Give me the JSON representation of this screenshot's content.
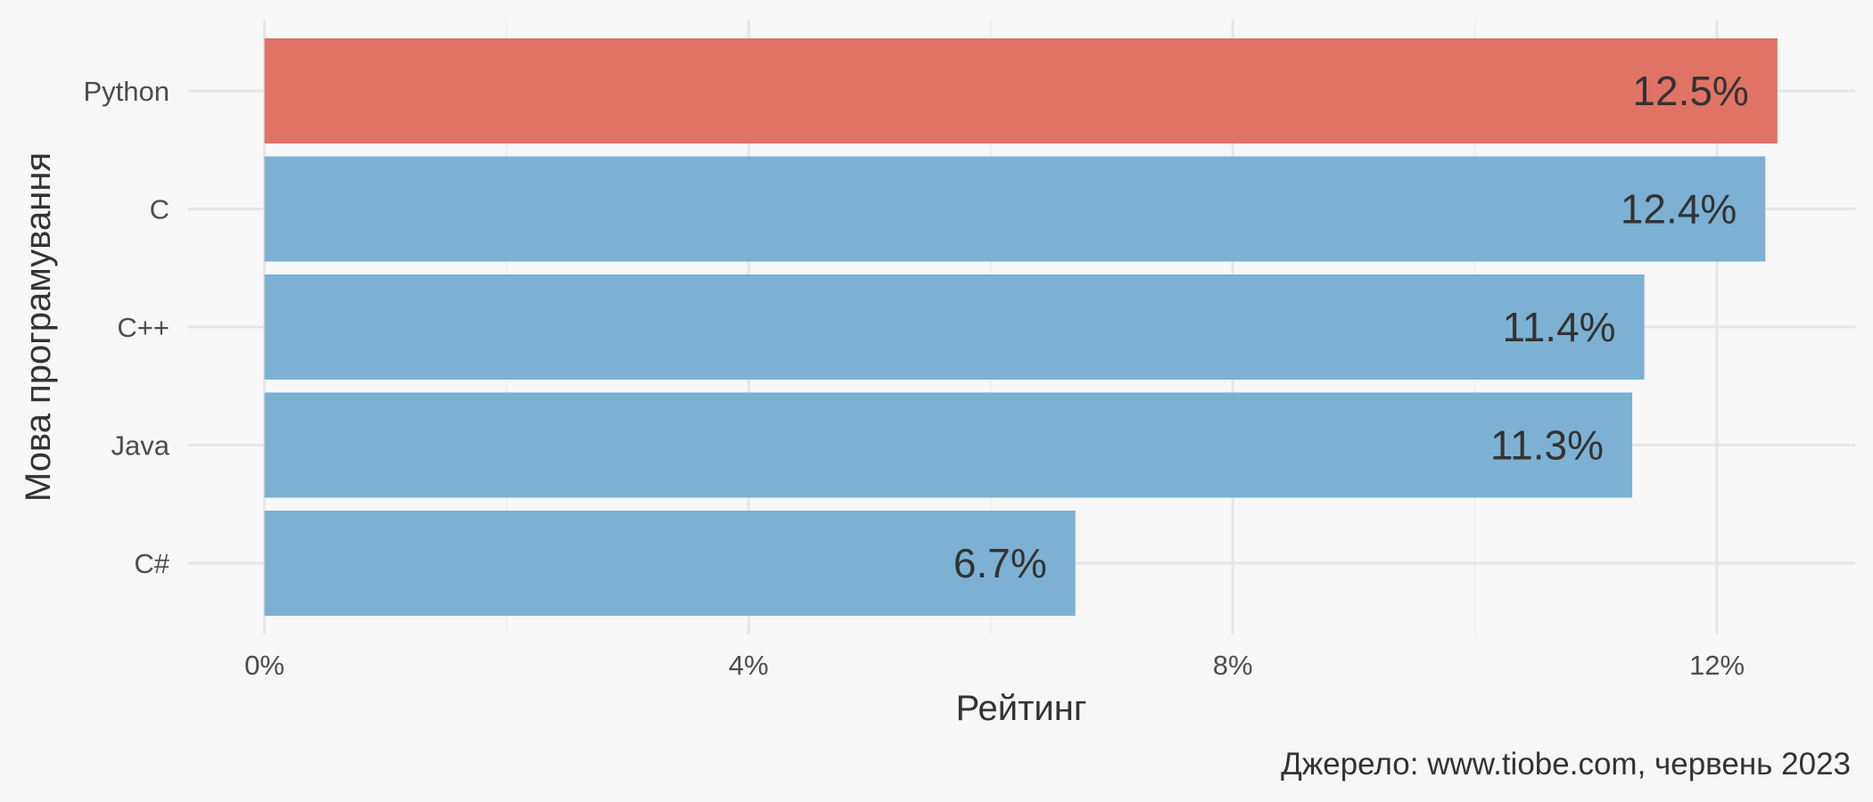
{
  "chart_data": {
    "type": "bar",
    "orientation": "horizontal",
    "categories": [
      "Python",
      "C",
      "C++",
      "Java",
      "C#"
    ],
    "values": [
      12.5,
      12.4,
      11.4,
      11.3,
      6.7
    ],
    "data_labels": [
      "12.5%",
      "12.4%",
      "11.4%",
      "11.3%",
      "6.7%"
    ],
    "highlight_category": "Python",
    "xlabel": "Рейтинг",
    "ylabel": "Мова програмування",
    "xlim": [
      0,
      13
    ],
    "x_ticks": [
      0,
      4,
      8,
      12
    ],
    "x_tick_labels": [
      "0%",
      "4%",
      "8%",
      "12%"
    ],
    "caption": "Джерело: www.tiobe.com, червень 2023",
    "grid": true,
    "legend": "none",
    "colors": {
      "highlight": "#e07365",
      "default": "#7db1d3",
      "background": "#f7f7f7"
    }
  }
}
